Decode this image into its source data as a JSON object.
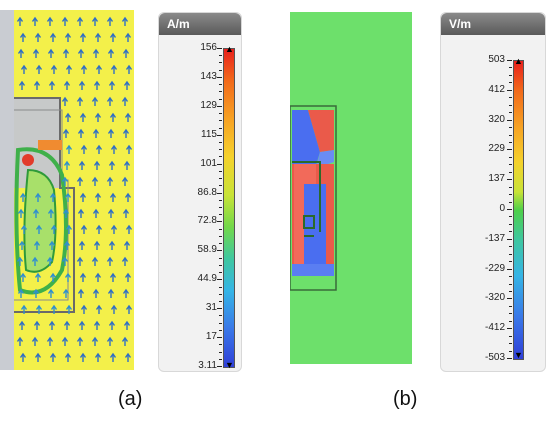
{
  "panel_a": {
    "caption": "(a)",
    "legend": {
      "unit": "A/m",
      "ticks": [
        "156",
        "143",
        "129",
        "115",
        "101",
        "86.8",
        "72.8",
        "58.9",
        "44.9",
        "31",
        "17",
        "3.11"
      ]
    }
  },
  "panel_b": {
    "caption": "(b)",
    "legend": {
      "unit": "V/m",
      "ticks": [
        "503",
        "412",
        "320",
        "229",
        "137",
        "0",
        "-137",
        "-229",
        "-320",
        "-412",
        "-503"
      ]
    }
  },
  "colors": {
    "field_yellow": "#f3f04a",
    "field_green": "#6de06b",
    "field_red": "#ea5a4a",
    "field_blue": "#4a6ef0",
    "arrow_blue": "#2f6fc6"
  }
}
